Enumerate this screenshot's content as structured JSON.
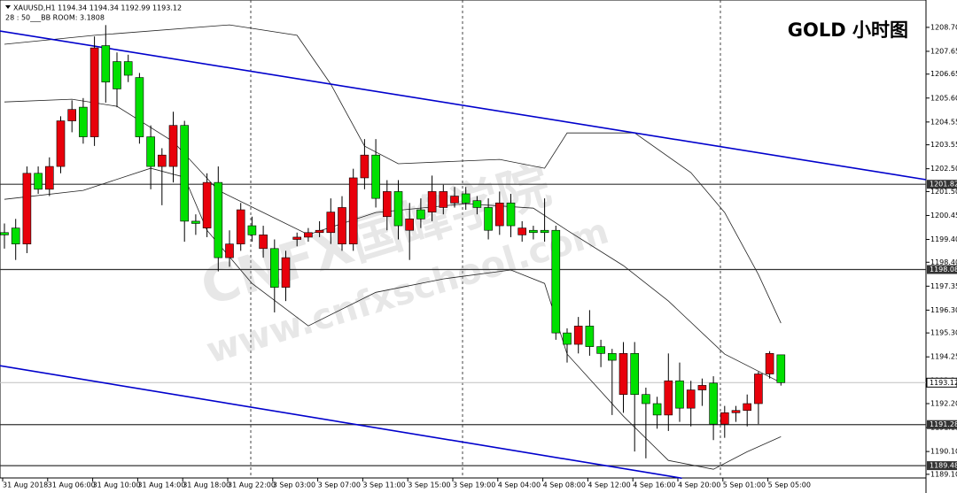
{
  "chart_data": {
    "type": "candlestick",
    "title": "GOLD 小时图",
    "header": "XAUUSD,H1  1194.34 1194.34 1192.99 1193.12",
    "subheader": "28 : 50___BB ROOM: 3.1808",
    "watermark": [
      "CNFX国峰学院",
      "www.cnfxschool.com"
    ],
    "categories": [
      "31 Aug 2018",
      null,
      null,
      null,
      "31 Aug 06:00",
      null,
      null,
      null,
      "31 Aug 10:00",
      null,
      null,
      null,
      "31 Aug 14:00",
      null,
      null,
      null,
      "31 Aug 18:00",
      null,
      null,
      null,
      "31 Aug 22:00",
      null,
      null,
      null,
      "3 Sep 03:00",
      null,
      null,
      null,
      "3 Sep 07:00",
      null,
      null,
      null,
      "3 Sep 11:00",
      null,
      null,
      null,
      "3 Sep 15:00",
      null,
      null,
      null,
      "3 Sep 19:00",
      null,
      null,
      null,
      "4 Sep 04:00",
      null,
      null,
      null,
      "4 Sep 08:00",
      null,
      null,
      null,
      "4 Sep 12:00",
      null,
      null,
      null,
      "4 Sep 16:00",
      null,
      null,
      null,
      "4 Sep 20:00",
      null,
      null,
      null,
      "5 Sep 01:00",
      null,
      null,
      null,
      "5 Sep 05:00",
      null
    ],
    "open": [
      1199.7,
      1199.9,
      1199.2,
      1202.3,
      1201.6,
      1202.6,
      1204.6,
      1205.2,
      1203.9,
      1207.9,
      1207.2,
      1207.2,
      1206.5,
      1203.9,
      1202.6,
      1202.6,
      1204.4,
      1200.2,
      1199.9,
      1201.9,
      1198.6,
      1199.2,
      1200.0,
      1199.0,
      1199.0,
      1197.3,
      1199.4,
      1199.5,
      1199.7,
      1199.7,
      1199.2,
      1199.2,
      1202.1,
      1203.1,
      1200.4,
      1201.5,
      1199.8,
      1200.7,
      1200.6,
      1200.8,
      1201.0,
      1201.4,
      1201.1,
      1200.8,
      1200.0,
      1201.0,
      1199.6,
      1199.8,
      1199.8,
      1199.8,
      1195.3,
      1194.8,
      1195.6,
      1194.7,
      1194.4,
      1192.6,
      1194.4,
      1192.6,
      1192.2,
      1191.7,
      1193.2,
      1192.0,
      1192.8,
      1193.1,
      1191.3,
      1191.8,
      1191.9,
      1192.2,
      1193.5,
      1194.34
    ],
    "high": [
      1200.1,
      1200.3,
      1202.6,
      1202.6,
      1203.0,
      1204.8,
      1205.5,
      1205.6,
      1208.3,
      1208.8,
      1207.6,
      1207.5,
      1206.7,
      1204.4,
      1203.4,
      1205.0,
      1204.6,
      1200.5,
      1202.3,
      1202.6,
      1199.8,
      1201.0,
      1200.4,
      1200.0,
      1199.4,
      1198.9,
      1199.7,
      1199.9,
      1200.2,
      1201.2,
      1201.3,
      1202.5,
      1203.8,
      1203.8,
      1202.0,
      1202.0,
      1201.0,
      1201.2,
      1202.2,
      1201.8,
      1201.7,
      1201.7,
      1201.3,
      1201.2,
      1201.5,
      1201.4,
      1200.2,
      1200.0,
      1201.2,
      1200.0,
      1195.5,
      1196.0,
      1196.3,
      1195.0,
      1194.6,
      1194.9,
      1194.9,
      1192.9,
      1192.5,
      1194.4,
      1194.0,
      1193.2,
      1193.3,
      1193.4,
      1192.1,
      1192.1,
      1192.6,
      1193.6,
      1194.5,
      1194.34
    ],
    "low": [
      1199.0,
      1198.5,
      1198.8,
      1201.4,
      1201.3,
      1202.3,
      1204.1,
      1203.6,
      1203.5,
      1205.4,
      1205.2,
      1206.3,
      1203.6,
      1201.6,
      1200.9,
      1201.9,
      1199.3,
      1199.6,
      1199.5,
      1198.0,
      1198.2,
      1198.9,
      1199.3,
      1198.6,
      1196.2,
      1196.7,
      1199.1,
      1199.3,
      1199.5,
      1199.2,
      1198.9,
      1198.9,
      1201.6,
      1200.8,
      1199.8,
      1199.4,
      1198.5,
      1199.9,
      1200.2,
      1200.5,
      1200.8,
      1200.7,
      1200.5,
      1199.4,
      1199.6,
      1199.5,
      1199.3,
      1199.4,
      1199.3,
      1195.0,
      1194.0,
      1194.4,
      1194.3,
      1193.8,
      1191.7,
      1191.8,
      1190.1,
      1189.8,
      1191.1,
      1191.0,
      1191.4,
      1191.2,
      1192.1,
      1190.6,
      1190.7,
      1191.4,
      1191.2,
      1191.3,
      1193.3,
      1192.99
    ],
    "close": [
      1199.6,
      1199.2,
      1202.3,
      1201.6,
      1202.6,
      1204.6,
      1205.1,
      1203.9,
      1207.8,
      1206.3,
      1206.0,
      1206.6,
      1203.9,
      1202.6,
      1203.1,
      1204.4,
      1200.2,
      1200.1,
      1201.9,
      1198.6,
      1199.2,
      1200.7,
      1199.6,
      1199.6,
      1197.3,
      1198.6,
      1199.5,
      1199.7,
      1199.8,
      1200.6,
      1200.8,
      1202.1,
      1203.1,
      1201.2,
      1201.5,
      1200.0,
      1200.3,
      1200.3,
      1201.5,
      1201.5,
      1201.3,
      1201.0,
      1200.8,
      1199.8,
      1201.0,
      1200.0,
      1199.9,
      1199.7,
      1199.7,
      1195.3,
      1194.8,
      1195.6,
      1194.7,
      1194.4,
      1194.1,
      1194.4,
      1192.6,
      1192.2,
      1191.7,
      1193.2,
      1192.0,
      1192.8,
      1193.0,
      1191.3,
      1191.8,
      1191.9,
      1192.2,
      1193.5,
      1194.4,
      1193.12
    ],
    "up_color": "#e8000b",
    "down_color": "#00e000",
    "bands": [
      {
        "x": [
          0,
          8,
          20,
          26,
          29,
          32,
          35,
          44,
          48,
          50,
          56,
          61,
          64,
          67,
          69
        ],
        "values": [
          1207.96,
          1208.35,
          1208.81,
          1208.35,
          1206.21,
          1203.49,
          1202.72,
          1202.91,
          1202.52,
          1204.07,
          1204.07,
          1202.33,
          1200.58,
          1197.86,
          1195.73
        ]
      },
      {
        "x": [
          0,
          6,
          10,
          15,
          19,
          23,
          27,
          33,
          41,
          47,
          50,
          55,
          59,
          64,
          69
        ],
        "values": [
          1205.43,
          1205.55,
          1205.24,
          1203.69,
          1201.55,
          1200.58,
          1199.61,
          1200.58,
          1200.97,
          1200.77,
          1199.8,
          1198.25,
          1196.7,
          1194.37,
          1193.12
        ]
      },
      {
        "x": [
          0,
          7,
          13,
          16,
          18,
          22,
          27,
          33,
          39,
          45,
          48,
          50,
          55,
          59,
          63,
          66,
          69
        ],
        "values": [
          1201.16,
          1201.55,
          1202.52,
          1202.13,
          1199.8,
          1197.47,
          1195.61,
          1197.08,
          1197.67,
          1198.06,
          1197.47,
          1194.37,
          1191.65,
          1189.71,
          1189.32,
          1190.09,
          1190.75
        ]
      }
    ],
    "band_color": "#222222",
    "trendlines": [
      {
        "x": [
          -0.4,
          81.9
        ],
        "values": [
          1208.54,
          1202.02
        ]
      },
      {
        "x": [
          -0.4,
          60.2
        ],
        "values": [
          1193.86,
          1188.93
        ]
      }
    ],
    "trend_color": "#0000cc",
    "levels": [
      1201.82,
      1198.08,
      1191.28,
      1189.48
    ],
    "level_color": "#333333",
    "last_price": 1193.12,
    "ylim": [
      1188.94,
      1209.9
    ],
    "yticks": [
      {
        "value": 1208.7,
        "label": "1208.70"
      },
      {
        "value": 1207.65,
        "label": "1207.65"
      },
      {
        "value": 1206.65,
        "label": "1206.65"
      },
      {
        "value": 1205.6,
        "label": "1205.60"
      },
      {
        "value": 1204.55,
        "label": "1204.55"
      },
      {
        "value": 1203.55,
        "label": "1203.55"
      },
      {
        "value": 1202.5,
        "label": "1202.50"
      },
      {
        "value": 1201.5,
        "label": "1201.50"
      },
      {
        "value": 1200.45,
        "label": "1200.45"
      },
      {
        "value": 1199.4,
        "label": "1199.40"
      },
      {
        "value": 1198.4,
        "label": "1198.40"
      },
      {
        "value": 1197.35,
        "label": "1197.35"
      },
      {
        "value": 1196.3,
        "label": "1196.30"
      },
      {
        "value": 1195.3,
        "label": "1195.30"
      },
      {
        "value": 1194.25,
        "label": "1194.25"
      },
      {
        "value": 1193.2,
        "label": "1193.20"
      },
      {
        "value": 1192.2,
        "label": "1192.20"
      },
      {
        "value": 1191.15,
        "label": "1191.15"
      },
      {
        "value": 1190.1,
        "label": "1190.10"
      },
      {
        "value": 1189.1,
        "label": "1189.10"
      }
    ]
  }
}
